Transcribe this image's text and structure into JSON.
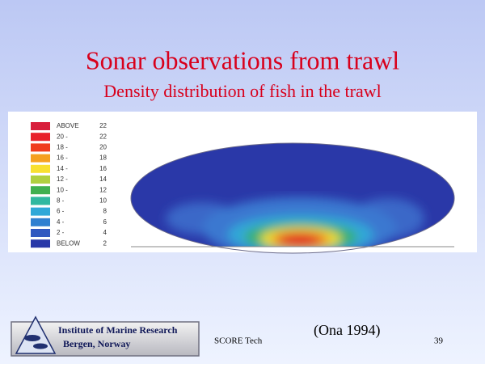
{
  "title": "Sonar observations from trawl",
  "subtitle": "Density distribution of fish in the trawl",
  "legend": [
    {
      "label": "ABOVE",
      "value": "22",
      "color": "#d81f3c"
    },
    {
      "label": "20 -",
      "value": "22",
      "color": "#e8202a"
    },
    {
      "label": "18 -",
      "value": "20",
      "color": "#f03c1e"
    },
    {
      "label": "16 -",
      "value": "18",
      "color": "#f5a020"
    },
    {
      "label": "14 -",
      "value": "16",
      "color": "#f8e030"
    },
    {
      "label": "12 -",
      "value": "14",
      "color": "#b0d040"
    },
    {
      "label": "10 -",
      "value": "12",
      "color": "#40b050"
    },
    {
      "label": "8 -",
      "value": "10",
      "color": "#30b8a0"
    },
    {
      "label": "6 -",
      "value": "8",
      "color": "#30a8d8"
    },
    {
      "label": "4 -",
      "value": "6",
      "color": "#3080d0"
    },
    {
      "label": "2 -",
      "value": "4",
      "color": "#3058c0"
    },
    {
      "label": "BELOW",
      "value": "2",
      "color": "#2838a8"
    }
  ],
  "footer": {
    "institute": "Institute of Marine Research",
    "location": "Bergen, Norway",
    "project": "SCORE Tech",
    "citation": "(Ona 1994)",
    "page": "39"
  }
}
